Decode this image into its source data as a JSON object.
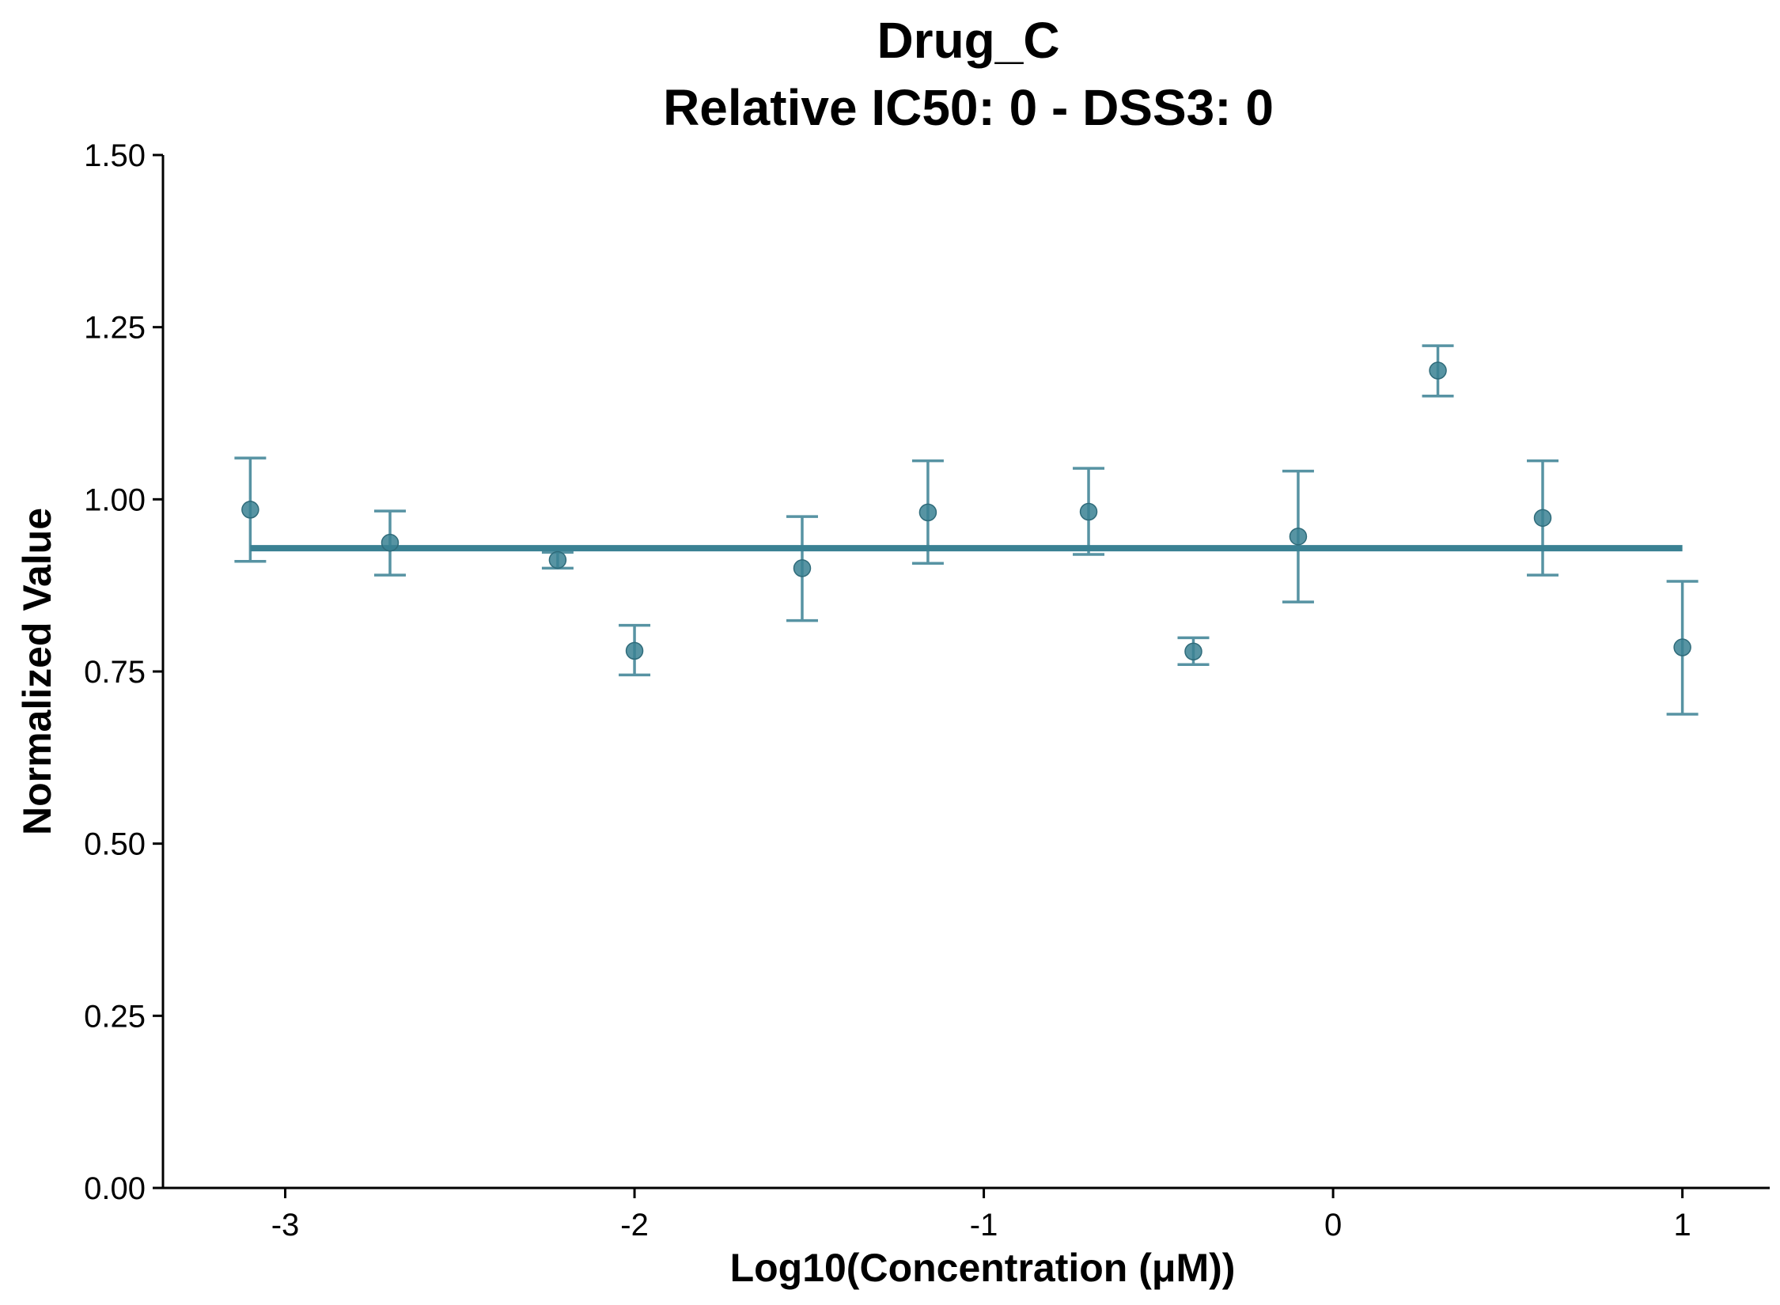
{
  "chart_data": {
    "type": "scatter",
    "title": "Drug_C",
    "subtitle": "Relative IC50: 0 - DSS3: 0",
    "xlabel": "Log10(Concentration (μM))",
    "ylabel": "Normalized Value",
    "xlim": [
      -3.35,
      1.25
    ],
    "ylim": [
      0,
      1.5
    ],
    "xticks": [
      -3,
      -2,
      -1,
      0,
      1
    ],
    "xtick_labels": [
      "-3",
      "-2",
      "-1",
      "0",
      "1"
    ],
    "yticks": [
      0,
      0.25,
      0.5,
      0.75,
      1.0,
      1.25,
      1.5
    ],
    "ytick_labels": [
      "0.00",
      "0.25",
      "0.50",
      "0.75",
      "1.00",
      "1.25",
      "1.50"
    ],
    "grid": false,
    "color": "#3a8193",
    "points": [
      {
        "x": -3.1,
        "y": 0.985,
        "lower": 0.91,
        "upper": 1.06
      },
      {
        "x": -2.7,
        "y": 0.937,
        "lower": 0.89,
        "upper": 0.983
      },
      {
        "x": -2.22,
        "y": 0.912,
        "lower": 0.9,
        "upper": 0.923
      },
      {
        "x": -2.0,
        "y": 0.78,
        "lower": 0.745,
        "upper": 0.817
      },
      {
        "x": -1.52,
        "y": 0.9,
        "lower": 0.824,
        "upper": 0.975
      },
      {
        "x": -1.16,
        "y": 0.981,
        "lower": 0.907,
        "upper": 1.056
      },
      {
        "x": -0.7,
        "y": 0.982,
        "lower": 0.92,
        "upper": 1.045
      },
      {
        "x": -0.4,
        "y": 0.779,
        "lower": 0.76,
        "upper": 0.799
      },
      {
        "x": -0.1,
        "y": 0.946,
        "lower": 0.851,
        "upper": 1.041
      },
      {
        "x": 0.3,
        "y": 1.187,
        "lower": 1.15,
        "upper": 1.223
      },
      {
        "x": 0.6,
        "y": 0.973,
        "lower": 0.89,
        "upper": 1.056
      },
      {
        "x": 1.0,
        "y": 0.785,
        "lower": 0.688,
        "upper": 0.881
      }
    ],
    "fit_line": {
      "x": [
        -3.1,
        1.0
      ],
      "y": [
        0.929,
        0.929
      ]
    }
  }
}
